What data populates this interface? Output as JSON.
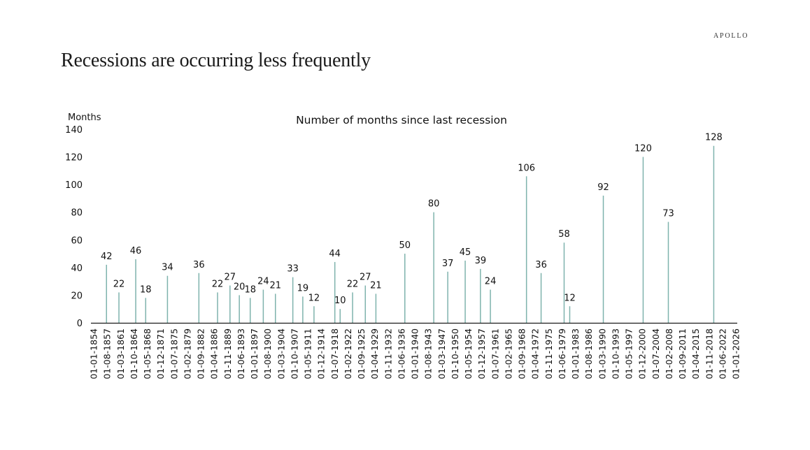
{
  "brand": "APOLLO",
  "title": "Recessions are occurring less frequently",
  "colors": {
    "bar": "#7fb3ad",
    "axis": "#1a1a1a",
    "text": "#111111"
  },
  "chart_data": {
    "type": "bar",
    "title": "Number of months since last recession",
    "ylabel": "Months",
    "xlabel": "",
    "ylim": [
      0,
      140
    ],
    "yticks": [
      0,
      20,
      40,
      60,
      80,
      100,
      120,
      140
    ],
    "grid": false,
    "legend": "none",
    "xtick_labels": [
      "01-01-1854",
      "01-08-1857",
      "01-03-1861",
      "01-10-1864",
      "01-05-1868",
      "01-12-1871",
      "01-07-1875",
      "01-02-1879",
      "01-09-1882",
      "01-04-1886",
      "01-11-1889",
      "01-06-1893",
      "01-01-1897",
      "01-08-1900",
      "01-03-1904",
      "01-10-1907",
      "01-05-1911",
      "01-12-1914",
      "01-07-1918",
      "01-02-1922",
      "01-09-1925",
      "01-04-1929",
      "01-11-1932",
      "01-06-1936",
      "01-01-1940",
      "01-08-1943",
      "01-03-1947",
      "01-10-1950",
      "01-05-1954",
      "01-12-1957",
      "01-07-1961",
      "01-02-1965",
      "01-09-1968",
      "01-04-1972",
      "01-11-1975",
      "01-06-1979",
      "01-01-1983",
      "01-08-1986",
      "01-03-1990",
      "01-10-1993",
      "01-05-1997",
      "01-12-2000",
      "01-07-2004",
      "01-02-2008",
      "01-09-2011",
      "01-04-2015",
      "01-11-2018",
      "01-06-2022",
      "01-01-2026"
    ],
    "points": [
      {
        "x": "1857-06",
        "y": 42
      },
      {
        "x": "1860-10",
        "y": 22
      },
      {
        "x": "1865-04",
        "y": 46
      },
      {
        "x": "1867-12",
        "y": 18
      },
      {
        "x": "1873-10",
        "y": 34
      },
      {
        "x": "1882-03",
        "y": 36
      },
      {
        "x": "1887-03",
        "y": 22
      },
      {
        "x": "1890-07",
        "y": 27
      },
      {
        "x": "1893-01",
        "y": 20
      },
      {
        "x": "1895-12",
        "y": 18
      },
      {
        "x": "1899-06",
        "y": 24
      },
      {
        "x": "1902-09",
        "y": 21
      },
      {
        "x": "1907-05",
        "y": 33
      },
      {
        "x": "1910-01",
        "y": 19
      },
      {
        "x": "1913-01",
        "y": 12
      },
      {
        "x": "1918-08",
        "y": 44
      },
      {
        "x": "1920-01",
        "y": 10
      },
      {
        "x": "1923-05",
        "y": 22
      },
      {
        "x": "1926-10",
        "y": 27
      },
      {
        "x": "1929-08",
        "y": 21
      },
      {
        "x": "1937-05",
        "y": 50
      },
      {
        "x": "1945-02",
        "y": 80
      },
      {
        "x": "1948-11",
        "y": 37
      },
      {
        "x": "1953-07",
        "y": 45
      },
      {
        "x": "1957-08",
        "y": 39
      },
      {
        "x": "1960-04",
        "y": 24
      },
      {
        "x": "1969-12",
        "y": 106
      },
      {
        "x": "1973-11",
        "y": 36
      },
      {
        "x": "1980-01",
        "y": 58
      },
      {
        "x": "1981-07",
        "y": 12
      },
      {
        "x": "1990-07",
        "y": 92
      },
      {
        "x": "2001-03",
        "y": 120
      },
      {
        "x": "2007-12",
        "y": 73
      },
      {
        "x": "2020-02",
        "y": 128
      }
    ]
  }
}
